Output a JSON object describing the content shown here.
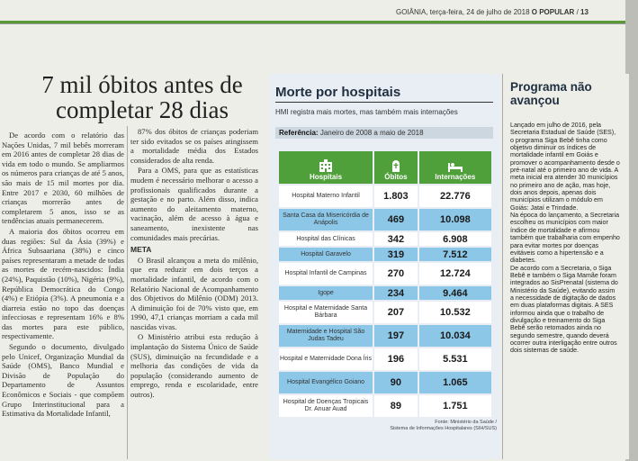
{
  "folio": {
    "city_date": "GOIÂNIA, terça-feira, 24 de julho de 2018",
    "paper": "O POPULAR",
    "page": "13"
  },
  "article": {
    "headline": "7 mil óbitos antes de completar 28 dias",
    "col1": {
      "p1": "De acordo com o relatório das Nações Unidas, 7 mil bebês morreram em 2016 antes de completar 28 dias de vida em todo o mundo. Se ampliarmos os números para crianças de até 5 anos, são mais de 15 mil mortes por dia. Entre 2017 e 2030, 60 milhões de crianças morrerão antes de completarem 5 anos, isso se as tendências atuais permanecerem.",
      "p2": "A maioria dos óbitos ocorreu em duas regiões: Sul da Ásia (39%) e África Subsaariana (38%) e cinco países representaram a metade de todas as mortes de recém-nascidos: Índia (24%), Paquistão (10%), Nigéria (9%), República Democrática do Congo (4%) e Etiópia (3%). A pneumonia e a diarreia estão no topo das doenças infecciosas e representam 16% e 8% das mortes para este público, respectivamente.",
      "p3": "Segundo o documento, divulgado pelo Unicef, Organização Mundial da Saúde (OMS), Banco Mundial e Divisão de População do Departamento de Assuntos Econômicos e Sociais - que compõem Grupo Interinstitucional para a Estimativa da Mortalidade Infantil,"
    },
    "col2": {
      "p1": "87% dos óbitos de crianças poderiam ter sido evitados se os países atingissem a mortalidade média dos Estados considerados de alta renda.",
      "p2": "Para a OMS, para que as estatísticas mudem é necessário melhorar o acesso a profissionais qualificados durante a gestação e no parto. Além disso, indica aumento do aleitamento materno, vacinação, além de acesso à água e saneamento, inexistente nas comunidades mais precárias.",
      "meta": "META",
      "p3": "O Brasil alcançou a meta do milênio, que era reduzir em dois terços a mortalidade infantil, de acordo com o Relatório Nacional de Acompanhamento dos Objetivos do Milênio (ODM) 2013. A diminuição foi de 70% visto que, em 1990, 47,1 crianças morriam a cada mil nascidas vivas.",
      "p4": "O Ministério atribui esta redução à implantação do Sistema Único de Saúde (SUS), diminuição na fecundidade e a melhoria das condições de vida da população (considerando aumento de emprego, renda e escolaridade, entre outros)."
    }
  },
  "infographic": {
    "title": "Morte por hospitais",
    "subtitle": "HMI registra mais mortes, mas também mais internações",
    "ref_label": "Referência:",
    "ref_value": "Janeiro de 2008 a maio de 2018",
    "headers": {
      "hospitais": "Hospitais",
      "obitos": "Óbitos",
      "internacoes": "Internações"
    },
    "rows": [
      {
        "name": "Hospital Materno Infantil",
        "obitos": "1.803",
        "internacoes": "22.776"
      },
      {
        "name": "Santa Casa da Misericórdia de Anápolis",
        "obitos": "469",
        "internacoes": "10.098"
      },
      {
        "name": "Hospital das Clínicas",
        "obitos": "342",
        "internacoes": "6.908"
      },
      {
        "name": "Hospital Garavelo",
        "obitos": "319",
        "internacoes": "7.512"
      },
      {
        "name": "Hospital Infantil de Campinas",
        "obitos": "270",
        "internacoes": "12.724"
      },
      {
        "name": "Igope",
        "obitos": "234",
        "internacoes": "9.464"
      },
      {
        "name": "Hospital e Maternidade Santa Bárbara",
        "obitos": "207",
        "internacoes": "10.532"
      },
      {
        "name": "Maternidade e Hospital São Judas Tadeu",
        "obitos": "197",
        "internacoes": "10.034"
      },
      {
        "name": "Hospital e Maternidade Dona Íris",
        "obitos": "196",
        "internacoes": "5.531"
      },
      {
        "name": "Hospital Evangélico Goiano",
        "obitos": "90",
        "internacoes": "1.065"
      },
      {
        "name": "Hospital de Doenças Tropicais Dr. Anuar Auad",
        "obitos": "89",
        "internacoes": "1.751"
      }
    ],
    "source_line1": "Fonte: Ministério da Saúde /",
    "source_line2": "Sistema de Informações Hospitalares (SIH/SUS)",
    "colors": {
      "header_green": "#4f9f3a",
      "row_blue": "#8cc7e8"
    }
  },
  "sidebar": {
    "title": "Programa não avançou",
    "p1": "Lançado em julho de 2016, pela Secretaria Estadual de Saúde (SES), o programa Siga Bebê tinha como objetivo diminuir os índices de mortalidade infantil em Goiás e promover o acompanhamento desde o pré-natal até o primeiro ano de vida. A meta inicial era atender 30 municípios no primeiro ano de ação, mas hoje, dois anos depois, apenas dois municípios utilizam o módulo em Goiás: Jataí e Trindade.",
    "p2": "Na época do lançamento, a Secretaria escolheu os municípios com maior índice de mortalidade e afirmou também que trabalharia com empenho para evitar mortes por doenças evitáveis como a hipertensão e a diabetes.",
    "p3": "De acordo com a Secretaria, o Siga Bebê e também o Siga Mamãe foram integrados ao SisPrenatal (sistema do Ministério da Saúde), evitando assim a necessidade de digitação de dados em duas plataformas digitais. A SES informou ainda que o trabalho de divulgação e treinamento do Siga Bebê serão retomados ainda no segundo semestre, quando deverá ocorrer outra interligação entre outros dois sistemas de saúde."
  }
}
